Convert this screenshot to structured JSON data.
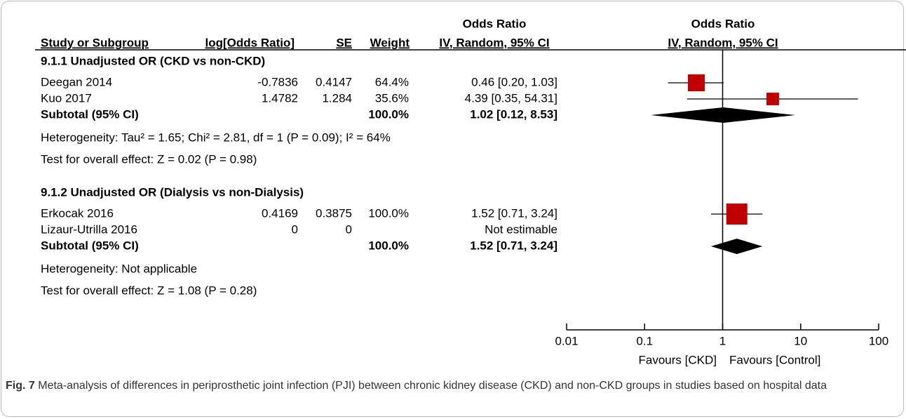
{
  "chart_data": {
    "type": "forest",
    "column_group": "Odds Ratio",
    "columns": [
      "Study or Subgroup",
      "log[Odds Ratio]",
      "SE",
      "Weight",
      "IV, Random, 95% CI"
    ],
    "plot_header": [
      "Odds Ratio",
      "IV, Random, 95% CI"
    ],
    "groups": [
      {
        "title": "9.1.1 Unadjusted OR (CKD vs non-CKD)",
        "studies": [
          {
            "name": "Deegan 2014",
            "log_or": -0.7836,
            "se": 0.4147,
            "weight": 64.4,
            "weight_label": "64.4%",
            "or": 0.46,
            "lo": 0.2,
            "hi": 1.03,
            "ci_label": "0.46 [0.20, 1.03]"
          },
          {
            "name": "Kuo 2017",
            "log_or": 1.4782,
            "se": 1.284,
            "weight": 35.6,
            "weight_label": "35.6%",
            "or": 4.39,
            "lo": 0.35,
            "hi": 54.31,
            "ci_label": "4.39 [0.35, 54.31]"
          }
        ],
        "subtotal": {
          "name": "Subtotal (95% CI)",
          "weight": 100,
          "weight_label": "100.0%",
          "or": 1.02,
          "lo": 0.12,
          "hi": 8.53,
          "ci_label": "1.02 [0.12, 8.53]"
        },
        "heterogeneity": "Heterogeneity: Tau² = 1.65; Chi² = 2.81, df = 1 (P = 0.09); I² = 64%",
        "overall": "Test for overall effect: Z = 0.02 (P = 0.98)"
      },
      {
        "title": "9.1.2 Unadjusted OR (Dialysis vs non-Dialysis)",
        "studies": [
          {
            "name": "Erkocak 2016",
            "log_or": 0.4169,
            "se": 0.3875,
            "weight": 100,
            "weight_label": "100.0%",
            "or": 1.52,
            "lo": 0.71,
            "hi": 3.24,
            "ci_label": "1.52 [0.71, 3.24]"
          },
          {
            "name": "Lizaur-Utrilla 2016",
            "log_or": 0,
            "se": 0,
            "weight": null,
            "weight_label": null,
            "or": null,
            "lo": null,
            "hi": null,
            "ci_label": "Not estimable"
          }
        ],
        "subtotal": {
          "name": "Subtotal (95% CI)",
          "weight": 100,
          "weight_label": "100.0%",
          "or": 1.52,
          "lo": 0.71,
          "hi": 3.24,
          "ci_label": "1.52 [0.71, 3.24]"
        },
        "heterogeneity": "Heterogeneity: Not applicable",
        "overall": "Test for overall effect: Z = 1.08 (P = 0.28)"
      }
    ],
    "xlim": [
      0.01,
      100
    ],
    "xticks": [
      0.01,
      0.1,
      1,
      10,
      100
    ],
    "log_scale": true,
    "favours": [
      "Favours [CKD]",
      "Favours [Control]"
    ],
    "marker_color": "#c00000",
    "caption": {
      "label": "Fig. 7",
      "text": "Meta-analysis of differences in periprosthetic joint infection (PJI) between chronic kidney disease (CKD) and non-CKD groups in studies based on hospital data"
    }
  }
}
